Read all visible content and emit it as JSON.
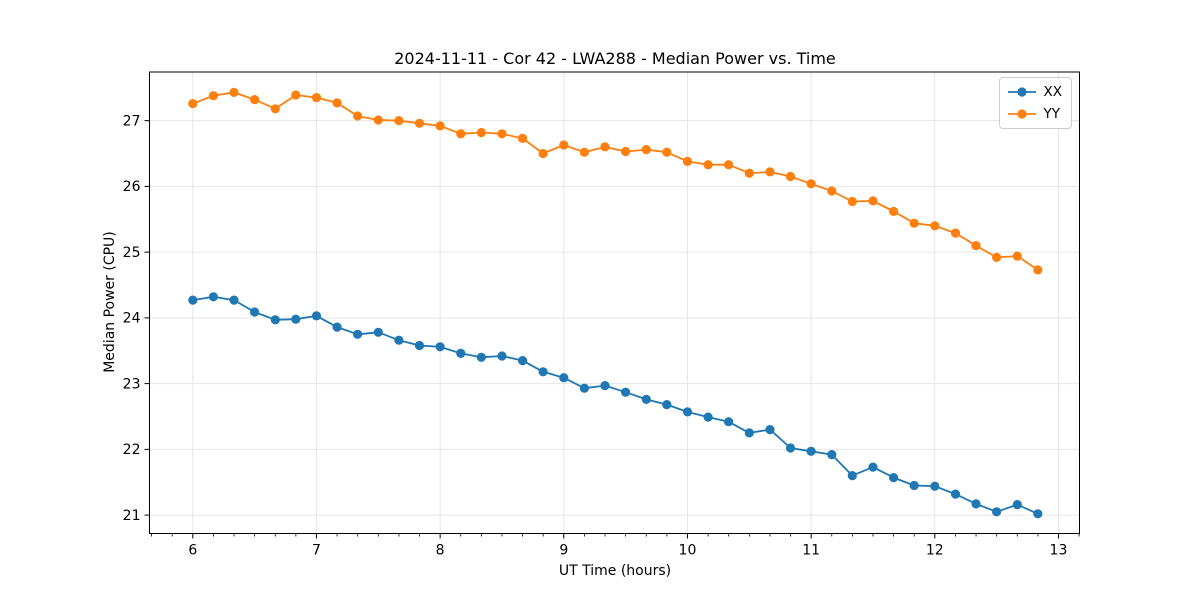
{
  "chart_data": {
    "type": "line",
    "title": "2024-11-11 - Cor 42 - LWA288 - Median Power vs. Time",
    "xlabel": "UT Time (hours)",
    "ylabel": "Median Power (CPU)",
    "x": [
      6.0,
      6.167,
      6.333,
      6.5,
      6.667,
      6.833,
      7.0,
      7.167,
      7.333,
      7.5,
      7.667,
      7.833,
      8.0,
      8.167,
      8.333,
      8.5,
      8.667,
      8.833,
      9.0,
      9.167,
      9.333,
      9.5,
      9.667,
      9.833,
      10.0,
      10.167,
      10.333,
      10.5,
      10.667,
      10.833,
      11.0,
      11.167,
      11.333,
      11.5,
      11.667,
      11.833,
      12.0,
      12.167,
      12.333,
      12.5,
      12.667,
      12.833
    ],
    "series": [
      {
        "name": "XX",
        "color": "#1f77b4",
        "values": [
          24.27,
          24.32,
          24.27,
          24.09,
          23.97,
          23.98,
          24.03,
          23.86,
          23.75,
          23.78,
          23.66,
          23.58,
          23.56,
          23.46,
          23.4,
          23.42,
          23.35,
          23.18,
          23.09,
          22.93,
          22.97,
          22.87,
          22.76,
          22.68,
          22.57,
          22.49,
          22.42,
          22.25,
          22.3,
          22.02,
          21.97,
          21.92,
          21.6,
          21.73,
          21.57,
          21.45,
          21.44,
          21.32,
          21.17,
          21.05,
          21.16,
          21.02
        ]
      },
      {
        "name": "YY",
        "color": "#ff7f0e",
        "values": [
          27.26,
          27.38,
          27.43,
          27.32,
          27.18,
          27.39,
          27.35,
          27.27,
          27.07,
          27.01,
          27.0,
          26.96,
          26.92,
          26.8,
          26.82,
          26.8,
          26.73,
          26.5,
          26.63,
          26.52,
          26.6,
          26.53,
          26.56,
          26.52,
          26.38,
          26.33,
          26.33,
          26.2,
          26.22,
          26.15,
          26.04,
          25.93,
          25.77,
          25.78,
          25.62,
          25.44,
          25.4,
          25.29,
          25.1,
          24.92,
          24.94,
          24.73
        ]
      }
    ],
    "xlim": [
      5.65,
      13.17
    ],
    "ylim": [
      20.72,
      27.74
    ],
    "xticks": [
      6,
      7,
      8,
      9,
      10,
      11,
      12,
      13
    ],
    "yticks": [
      21,
      22,
      23,
      24,
      25,
      26,
      27
    ],
    "x_minor_step": 0.16667,
    "grid": true,
    "grid_color": "#e6e6e6",
    "axis_color": "#000000",
    "background": "#ffffff",
    "legend": {
      "position": "upper right",
      "entries": [
        "XX",
        "YY"
      ]
    }
  }
}
